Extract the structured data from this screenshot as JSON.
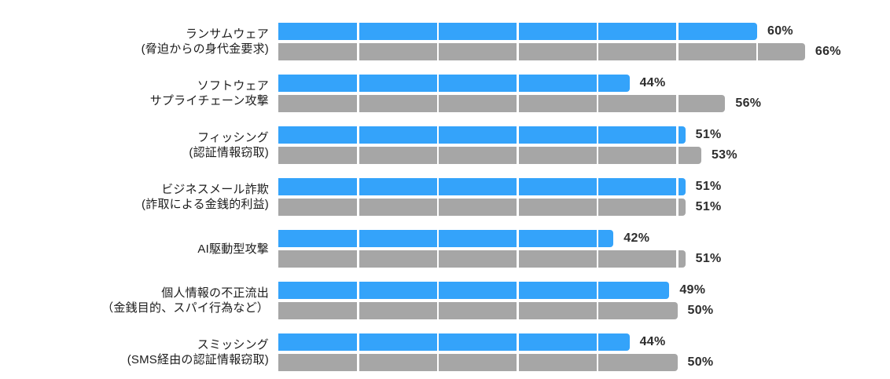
{
  "chart_data": {
    "type": "bar",
    "orientation": "horizontal",
    "title": "",
    "xlabel": "",
    "ylabel": "",
    "value_unit": "%",
    "axis_range_percent": [
      0,
      100
    ],
    "segment_gridline_interval_percent": 10,
    "legend_position": "none",
    "colors": {
      "primary_blue": "#34a3fa",
      "secondary_gray": "#a6a6a6",
      "segment_divider": "#ffffff",
      "label_text": "#1c1c1c",
      "value_text": "#2d2d2d"
    },
    "categories": [
      {
        "label_lines": [
          "ランサムウェア",
          "(脅迫からの身代金要求)"
        ]
      },
      {
        "label_lines": [
          "ソフトウェア",
          "サプライチェーン攻撃"
        ]
      },
      {
        "label_lines": [
          "フィッシング",
          "(認証情報窃取)"
        ]
      },
      {
        "label_lines": [
          "ビジネスメール詐欺",
          "(詐取による金銭的利益)"
        ]
      },
      {
        "label_lines": [
          "AI駆動型攻撃"
        ]
      },
      {
        "label_lines": [
          "個人情報の不正流出",
          "（金銭目的、スパイ行為など）"
        ]
      },
      {
        "label_lines": [
          "スミッシング",
          "(SMS経由の認証情報窃取)"
        ]
      }
    ],
    "series": [
      {
        "name": "primary-blue",
        "color": "#34a3fa",
        "values": [
          60,
          44,
          51,
          51,
          42,
          49,
          44
        ]
      },
      {
        "name": "secondary-gray",
        "color": "#a6a6a6",
        "values": [
          66,
          56,
          53,
          51,
          51,
          50,
          50
        ]
      }
    ],
    "value_labels": {
      "primary_blue": [
        "60%",
        "44%",
        "51%",
        "51%",
        "42%",
        "49%",
        "44%"
      ],
      "secondary_gray": [
        "66%",
        "56%",
        "53%",
        "51%",
        "51%",
        "50%",
        "50%"
      ]
    }
  }
}
